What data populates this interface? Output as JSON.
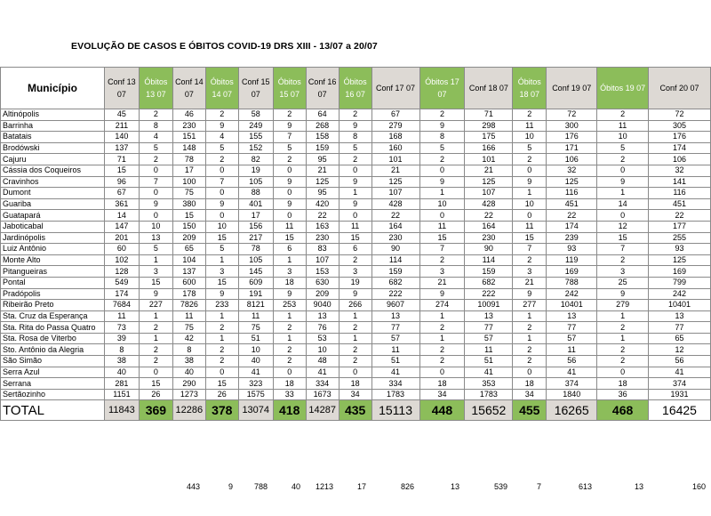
{
  "title": "EVOLUÇÃO DE CASOS E ÓBITOS COVID-19 DRS XIII - 13/07 a 20/07",
  "headers": [
    "Município",
    "Conf 13 07",
    "Óbitos 13 07",
    "Conf 14 07",
    "Óbitos 14 07",
    "Conf 15 07",
    "Óbitos 15 07",
    "Conf 16 07",
    "Óbitos 16 07",
    "Conf 17 07",
    "Óbitos 17 07",
    "Conf 18 07",
    "Óbitos 18 07",
    "Conf 19 07",
    "Óbitos 19 07",
    "Conf 20 07"
  ],
  "rows": [
    [
      "Altinópolis",
      "45",
      "2",
      "46",
      "2",
      "58",
      "2",
      "64",
      "2",
      "67",
      "2",
      "71",
      "2",
      "72",
      "2",
      "72"
    ],
    [
      "Barrinha",
      "211",
      "8",
      "230",
      "9",
      "249",
      "9",
      "268",
      "9",
      "279",
      "9",
      "298",
      "11",
      "300",
      "11",
      "305"
    ],
    [
      "Batatais",
      "140",
      "4",
      "151",
      "4",
      "155",
      "7",
      "158",
      "8",
      "168",
      "8",
      "175",
      "10",
      "176",
      "10",
      "176"
    ],
    [
      "Brodówski",
      "137",
      "5",
      "148",
      "5",
      "152",
      "5",
      "159",
      "5",
      "160",
      "5",
      "166",
      "5",
      "171",
      "5",
      "174"
    ],
    [
      "Cajuru",
      "71",
      "2",
      "78",
      "2",
      "82",
      "2",
      "95",
      "2",
      "101",
      "2",
      "101",
      "2",
      "106",
      "2",
      "106"
    ],
    [
      "Cássia dos Coqueiros",
      "15",
      "0",
      "17",
      "0",
      "19",
      "0",
      "21",
      "0",
      "21",
      "0",
      "21",
      "0",
      "32",
      "0",
      "32"
    ],
    [
      "Cravinhos",
      "96",
      "7",
      "100",
      "7",
      "105",
      "9",
      "125",
      "9",
      "125",
      "9",
      "125",
      "9",
      "125",
      "9",
      "141"
    ],
    [
      "Dumont",
      "67",
      "0",
      "75",
      "0",
      "88",
      "0",
      "95",
      "1",
      "107",
      "1",
      "107",
      "1",
      "116",
      "1",
      "116"
    ],
    [
      "Guariba",
      "361",
      "9",
      "380",
      "9",
      "401",
      "9",
      "420",
      "9",
      "428",
      "10",
      "428",
      "10",
      "451",
      "14",
      "451"
    ],
    [
      "Guatapará",
      "14",
      "0",
      "15",
      "0",
      "17",
      "0",
      "22",
      "0",
      "22",
      "0",
      "22",
      "0",
      "22",
      "0",
      "22"
    ],
    [
      "Jaboticabal",
      "147",
      "10",
      "150",
      "10",
      "156",
      "11",
      "163",
      "11",
      "164",
      "11",
      "164",
      "11",
      "174",
      "12",
      "177"
    ],
    [
      "Jardinópolis",
      "201",
      "13",
      "209",
      "15",
      "217",
      "15",
      "230",
      "15",
      "230",
      "15",
      "230",
      "15",
      "239",
      "15",
      "255"
    ],
    [
      "Luiz Antônio",
      "60",
      "5",
      "65",
      "5",
      "78",
      "6",
      "83",
      "6",
      "90",
      "7",
      "90",
      "7",
      "93",
      "7",
      "93"
    ],
    [
      "Monte Alto",
      "102",
      "1",
      "104",
      "1",
      "105",
      "1",
      "107",
      "2",
      "114",
      "2",
      "114",
      "2",
      "119",
      "2",
      "125"
    ],
    [
      "Pitangueiras",
      "128",
      "3",
      "137",
      "3",
      "145",
      "3",
      "153",
      "3",
      "159",
      "3",
      "159",
      "3",
      "169",
      "3",
      "169"
    ],
    [
      "Pontal",
      "549",
      "15",
      "600",
      "15",
      "609",
      "18",
      "630",
      "19",
      "682",
      "21",
      "682",
      "21",
      "788",
      "25",
      "799"
    ],
    [
      "Pradópolis",
      "174",
      "9",
      "178",
      "9",
      "191",
      "9",
      "209",
      "9",
      "222",
      "9",
      "222",
      "9",
      "242",
      "9",
      "242"
    ],
    [
      "Ribeirão Preto",
      "7684",
      "227",
      "7826",
      "233",
      "8121",
      "253",
      "9040",
      "266",
      "9607",
      "274",
      "10091",
      "277",
      "10401",
      "279",
      "10401"
    ],
    [
      "Sta. Cruz da Esperança",
      "11",
      "1",
      "11",
      "1",
      "11",
      "1",
      "13",
      "1",
      "13",
      "1",
      "13",
      "1",
      "13",
      "1",
      "13"
    ],
    [
      "Sta. Rita do Passa Quatro",
      "73",
      "2",
      "75",
      "2",
      "75",
      "2",
      "76",
      "2",
      "77",
      "2",
      "77",
      "2",
      "77",
      "2",
      "77"
    ],
    [
      "Sta. Rosa de Viterbo",
      "39",
      "1",
      "42",
      "1",
      "51",
      "1",
      "53",
      "1",
      "57",
      "1",
      "57",
      "1",
      "57",
      "1",
      "65"
    ],
    [
      "Sto. Antônio da Alegria",
      "8",
      "2",
      "8",
      "2",
      "10",
      "2",
      "10",
      "2",
      "11",
      "2",
      "11",
      "2",
      "11",
      "2",
      "12"
    ],
    [
      "São Simão",
      "38",
      "2",
      "38",
      "2",
      "40",
      "2",
      "48",
      "2",
      "51",
      "2",
      "51",
      "2",
      "56",
      "2",
      "56"
    ],
    [
      "Serra Azul",
      "40",
      "0",
      "40",
      "0",
      "41",
      "0",
      "41",
      "0",
      "41",
      "0",
      "41",
      "0",
      "41",
      "0",
      "41"
    ],
    [
      "Serrana",
      "281",
      "15",
      "290",
      "15",
      "323",
      "18",
      "334",
      "18",
      "334",
      "18",
      "353",
      "18",
      "374",
      "18",
      "374"
    ],
    [
      "Sertãozinho",
      "1151",
      "26",
      "1273",
      "26",
      "1575",
      "33",
      "1673",
      "34",
      "1783",
      "34",
      "1783",
      "34",
      "1840",
      "36",
      "1931"
    ]
  ],
  "total": [
    "TOTAL",
    "11843",
    "369",
    "12286",
    "378",
    "13074",
    "418",
    "14287",
    "435",
    "15113",
    "448",
    "15652",
    "455",
    "16265",
    "468",
    "16425"
  ],
  "footer": [
    "443",
    "9",
    "788",
    "40",
    "1213",
    "17",
    "826",
    "13",
    "539",
    "7",
    "613",
    "13",
    "160"
  ]
}
